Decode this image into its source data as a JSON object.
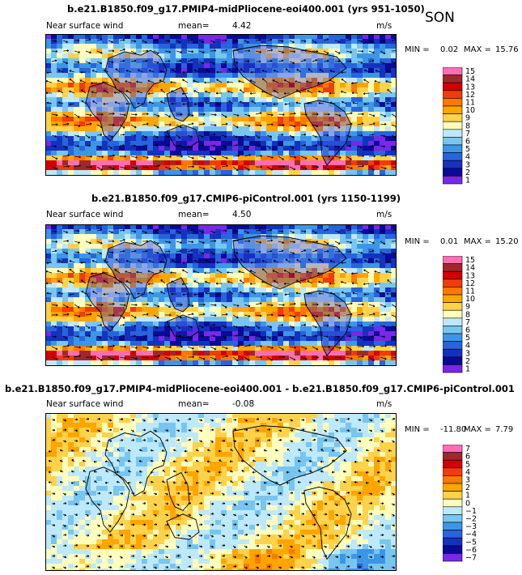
{
  "season": "SON",
  "chart_data": [
    {
      "type": "heatmap",
      "title": "b.e21.B1850.f09_g17.PMIP4-midPliocene-eoi400.001 (yrs 951-1050)",
      "left_label": "Near surface wind",
      "mean_label": "mean=",
      "mean_value": "4.42",
      "units": "m/s",
      "min_label": "MIN =",
      "min_value": "0.02",
      "max_label": "MAX =",
      "max_value": "15.76",
      "colorbar": {
        "levels": [
          "15",
          "14",
          "13",
          "12",
          "11",
          "10",
          "9",
          "8",
          "7",
          "6",
          "5",
          "4",
          "3",
          "2",
          "1"
        ],
        "colors": [
          "#ff6eb4",
          "#a0282c",
          "#d20000",
          "#f03c0a",
          "#ff7800",
          "#ffa500",
          "#ffd24b",
          "#ffffbe",
          "#bde9fa",
          "#78c6f0",
          "#3c96e6",
          "#2864dc",
          "#1432be",
          "#0a0a96",
          "#7828e6"
        ]
      }
    },
    {
      "type": "heatmap",
      "title": "b.e21.B1850.f09_g17.CMIP6-piControl.001 (yrs 1150-1199)",
      "left_label": "Near surface wind",
      "mean_label": "mean=",
      "mean_value": "4.50",
      "units": "m/s",
      "min_label": "MIN =",
      "min_value": "0.01",
      "max_label": "MAX =",
      "max_value": "15.20",
      "colorbar": {
        "levels": [
          "15",
          "14",
          "13",
          "12",
          "11",
          "10",
          "9",
          "8",
          "7",
          "6",
          "5",
          "4",
          "3",
          "2",
          "1"
        ],
        "colors": [
          "#ff6eb4",
          "#a0282c",
          "#d20000",
          "#f03c0a",
          "#ff7800",
          "#ffa500",
          "#ffd24b",
          "#ffffbe",
          "#bde9fa",
          "#78c6f0",
          "#3c96e6",
          "#2864dc",
          "#1432be",
          "#0a0a96",
          "#7828e6"
        ]
      }
    },
    {
      "type": "heatmap",
      "title": "b.e21.B1850.f09_g17.PMIP4-midPliocene-eoi400.001 - b.e21.B1850.f09_g17.CMIP6-piControl.001",
      "left_label": "Near surface wind",
      "mean_label": "mean=",
      "mean_value": "-0.08",
      "units": "m/s",
      "min_label": "MIN =",
      "min_value": "-11.80",
      "max_label": "MAX =",
      "max_value": "7.79",
      "colorbar": {
        "levels": [
          "7",
          "6",
          "5",
          "4",
          "3",
          "2",
          "1",
          "0",
          "−1",
          "−2",
          "−3",
          "−4",
          "−5",
          "−6",
          "−7"
        ],
        "colors": [
          "#ff6eb4",
          "#a0282c",
          "#d20000",
          "#f03c0a",
          "#ff7800",
          "#ffa500",
          "#ffd24b",
          "#ffffbe",
          "#bde9fa",
          "#78c6f0",
          "#3c96e6",
          "#2864dc",
          "#1432be",
          "#0a0a96",
          "#7828e6"
        ]
      }
    }
  ]
}
